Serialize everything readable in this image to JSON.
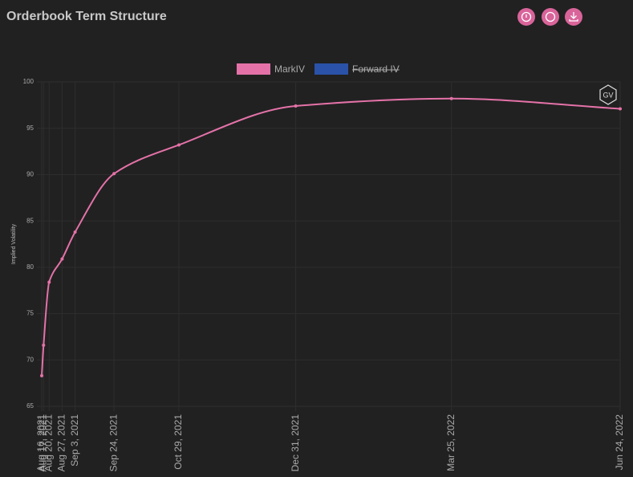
{
  "header": {
    "title": "Orderbook Term Structure"
  },
  "chart_data": {
    "type": "line",
    "watermark": "GV",
    "ylabel": "Implied Volatility",
    "x": [
      "Aug 16, 2021",
      "Aug 17, 2021",
      "Aug 20, 2021",
      "Aug 27, 2021",
      "Sep 3, 2021",
      "Sep 24, 2021",
      "Oct 29, 2021",
      "Dec 31, 2021",
      "Mar 25, 2022",
      "Jun 24, 2022"
    ],
    "series": [
      {
        "name": "MarkIV",
        "color": "#e472a8",
        "values": [
          68.3,
          71.6,
          78.4,
          80.9,
          83.8,
          90.1,
          93.2,
          97.4,
          98.2,
          97.1
        ]
      },
      {
        "name": "Forward IV",
        "color": "#2a52a8",
        "hidden": true
      }
    ],
    "ylim": [
      65,
      100
    ],
    "yticks": [
      65,
      70,
      75,
      80,
      85,
      90,
      95,
      100
    ],
    "grid": true,
    "legend": "top"
  }
}
